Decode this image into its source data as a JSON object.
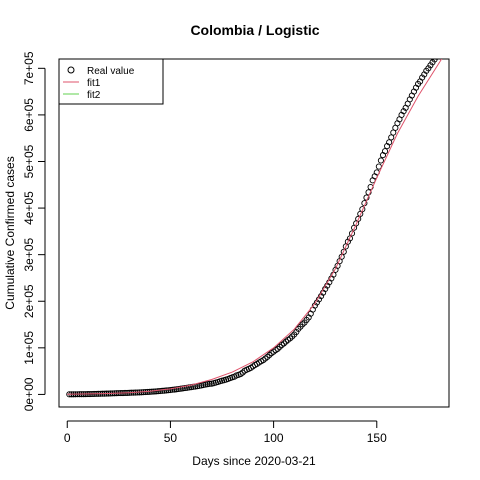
{
  "chart_data": {
    "type": "scatter",
    "title": "Colombia / Logistic",
    "xlabel": "Days since 2020-03-21",
    "ylabel": "Cumulative Confirmed cases",
    "xlim": [
      -4,
      185
    ],
    "ylim": [
      -27000,
      720000
    ],
    "x_ticks": [
      0,
      50,
      100,
      150
    ],
    "x_tick_labels": [
      "0",
      "50",
      "100",
      "150"
    ],
    "y_ticks": [
      0,
      100000,
      200000,
      300000,
      400000,
      500000,
      600000,
      700000
    ],
    "y_tick_labels": [
      "0e+00",
      "1e+05",
      "2e+05",
      "3e+05",
      "4e+05",
      "5e+05",
      "6e+05",
      "7e+05"
    ],
    "grid": false,
    "legend_position": "top-left",
    "legend": [
      "Real value",
      "fit1",
      "fit2"
    ],
    "series": [
      {
        "name": "Real value",
        "marker": "open-circle",
        "color": "#000000",
        "x": [
          1,
          2,
          3,
          4,
          5,
          6,
          7,
          8,
          9,
          10,
          11,
          12,
          13,
          14,
          15,
          16,
          17,
          18,
          19,
          20,
          21,
          22,
          23,
          24,
          25,
          26,
          27,
          28,
          29,
          30,
          31,
          32,
          33,
          34,
          35,
          36,
          37,
          38,
          39,
          40,
          41,
          42,
          43,
          44,
          45,
          46,
          47,
          48,
          49,
          50,
          51,
          52,
          53,
          54,
          55,
          56,
          57,
          58,
          59,
          60,
          61,
          62,
          63,
          64,
          65,
          66,
          67,
          68,
          69,
          70,
          71,
          72,
          73,
          74,
          75,
          76,
          77,
          78,
          79,
          80,
          81,
          82,
          83,
          84,
          85,
          86,
          87,
          88,
          89,
          90,
          91,
          92,
          93,
          94,
          95,
          96,
          97,
          98,
          99,
          100,
          101,
          102,
          103,
          104,
          105,
          106,
          107,
          108,
          109,
          110,
          111,
          112,
          113,
          114,
          115,
          116,
          117,
          118,
          119,
          120,
          121,
          122,
          123,
          124,
          125,
          126,
          127,
          128,
          129,
          130,
          131,
          132,
          133,
          134,
          135,
          136,
          137,
          138,
          139,
          140,
          141,
          142,
          143,
          144,
          145,
          146,
          147,
          148,
          149,
          150,
          151,
          152,
          153,
          154,
          155,
          156,
          157,
          158,
          159,
          160,
          161,
          162,
          163,
          164,
          165,
          166,
          167,
          168,
          169,
          170,
          171,
          172,
          173,
          174,
          175,
          176,
          177,
          178,
          179,
          180
        ],
        "y": [
          196,
          234,
          277,
          306,
          378,
          470,
          491,
          539,
          608,
          702,
          798,
          906,
          1065,
          1161,
          1267,
          1406,
          1485,
          1579,
          1780,
          1933,
          2054,
          2223,
          2473,
          2709,
          2776,
          2852,
          2979,
          3105,
          3233,
          3439,
          3621,
          3792,
          3977,
          4149,
          4356,
          4561,
          4881,
          5142,
          5379,
          5597,
          5949,
          6207,
          6507,
          7006,
          7285,
          7668,
          7973,
          8613,
          8959,
          9456,
          10051,
          10495,
          11063,
          11613,
          12272,
          12930,
          13610,
          14216,
          14939,
          15574,
          16295,
          16935,
          17687,
          18330,
          19131,
          20177,
          21175,
          21981,
          22687,
          23003,
          24104,
          25366,
          26688,
          28236,
          29383,
          30493,
          31833,
          33354,
          35120,
          36635,
          38027,
          40719,
          42078,
          43682,
          46858,
          50939,
          53063,
          54931,
          57046,
          60217,
          63276,
          65633,
          68652,
          71183,
          73572,
          77113,
          80599,
          84660,
          88591,
          91769,
          95043,
          97846,
          102009,
          106110,
          109505,
          113389,
          117110,
          120281,
          124494,
          128638,
          133973,
          140776,
          145362,
          150445,
          154277,
          159898,
          165169,
          173206,
          182140,
          190700,
          197278,
          204005,
          211038,
          218428,
          226373,
          233541,
          240795,
          248976,
          257101,
          267385,
          276055,
          286020,
          295508,
          306181,
          317651,
          327850,
          334979,
          345714,
          357710,
          367196,
          376870,
          387481,
          397623,
          410453,
          422519,
          433805,
          445111,
          459495,
          468332,
          476660,
          489122,
          502178,
          513719,
          522138,
          533103,
          541139,
          551688,
          562128,
          572243,
          582022,
          590520,
          599914,
          607904,
          615168,
          624026,
          633339,
          641574,
          650062,
          658456,
          666521,
          671848,
          680167,
          686851,
          694664,
          700000,
          706500,
          712800,
          719000,
          724900,
          730700
        ]
      },
      {
        "name": "fit1",
        "color": "#df536b",
        "x": [
          0,
          10,
          20,
          30,
          40,
          50,
          60,
          70,
          80,
          90,
          100,
          110,
          120,
          130,
          140,
          150,
          160,
          170,
          180,
          182
        ],
        "y": [
          500,
          1100,
          2000,
          3700,
          6700,
          12000,
          20000,
          32000,
          48000,
          70000,
          100000,
          140000,
          195000,
          270000,
          365000,
          465000,
          560000,
          640000,
          710000,
          724000
        ]
      },
      {
        "name": "fit2",
        "color": "#61d04f",
        "x": [],
        "y": []
      }
    ]
  }
}
